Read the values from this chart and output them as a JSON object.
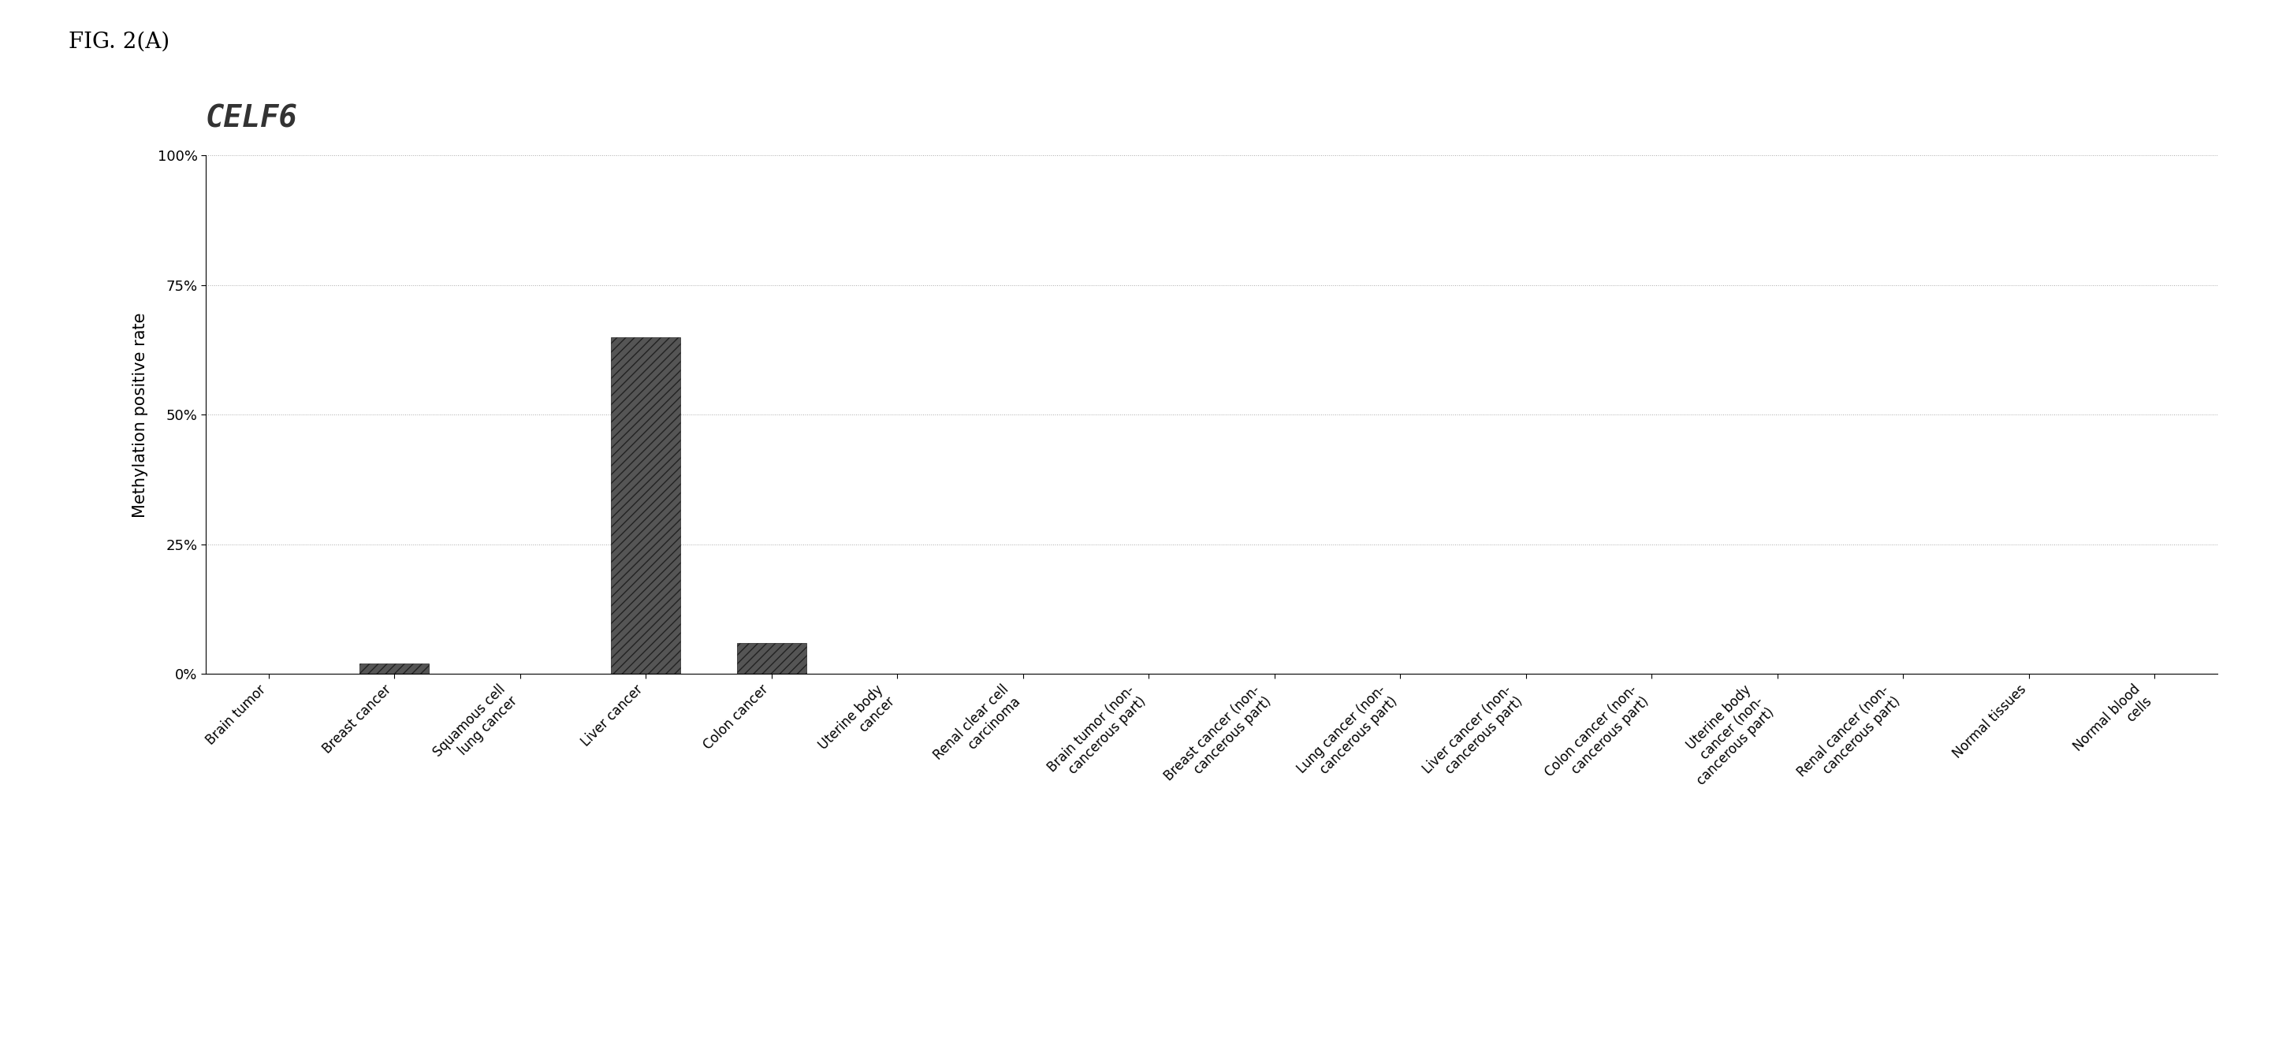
{
  "title_fig": "FIG. 2(A)",
  "gene_label": "CELF6",
  "ylabel": "Methylation positive rate",
  "categories": [
    "Brain tumor",
    "Breast cancer",
    "Squamous cell\nlung cancer",
    "Liver cancer",
    "Colon cancer",
    "Uterine body\ncancer",
    "Renal clear cell\ncarcinoma",
    "Brain tumor (non-\ncancerous part)",
    "Breast cancer (non-\ncancerous part)",
    "Lung cancer (non-\ncancerous part)",
    "Liver cancer (non-\ncancerous part)",
    "Colon cancer (non-\ncancerous part)",
    "Uterine body\ncancer (non-\ncancerous part)",
    "Renal cancer (non-\ncancerous part)",
    "Normal tissues",
    "Normal blood\ncells"
  ],
  "values": [
    0.0,
    2.0,
    0.0,
    65.0,
    6.0,
    0.0,
    0.0,
    0.0,
    0.0,
    0.0,
    0.0,
    0.0,
    0.0,
    0.0,
    0.0,
    0.0
  ],
  "bar_color": "#555555",
  "bar_hatch": "///",
  "ylim": [
    0,
    100
  ],
  "yticks": [
    0,
    25,
    50,
    75,
    100
  ],
  "ytick_labels": [
    "0%",
    "25%",
    "50%",
    "75%",
    "100%"
  ],
  "background_color": "#ffffff",
  "fig_label_fontsize": 20,
  "gene_fontsize": 28,
  "ylabel_fontsize": 15,
  "tick_fontsize": 13,
  "xtick_fontsize": 12
}
